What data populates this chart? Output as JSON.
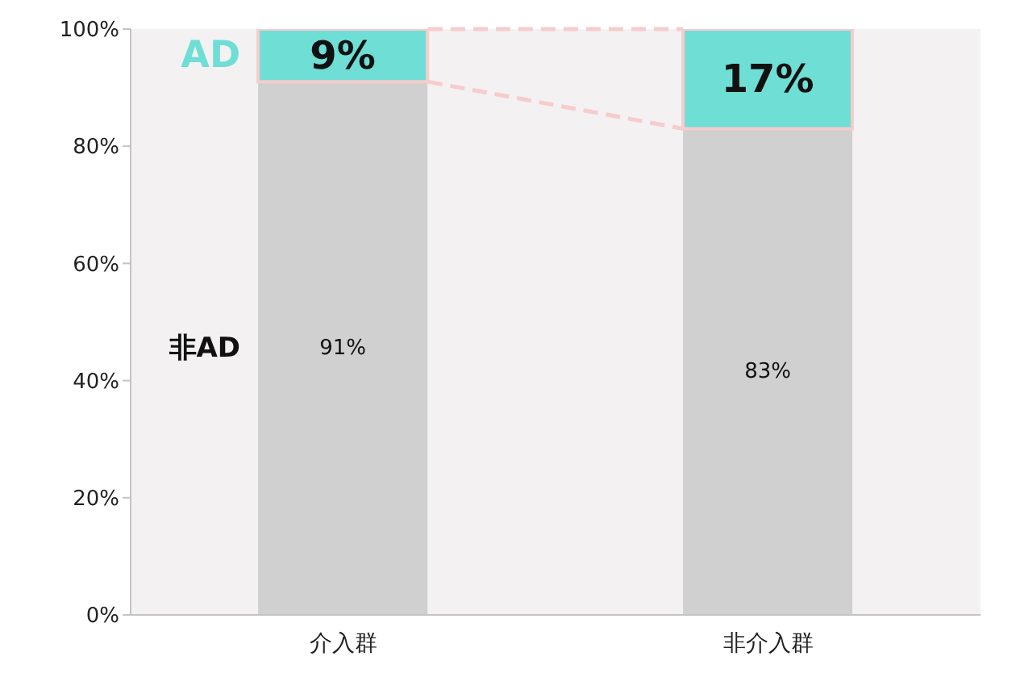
{
  "chart_data": {
    "type": "bar",
    "stacked": true,
    "categories": [
      "介入群",
      "非介入群"
    ],
    "series": [
      {
        "name": "非AD",
        "color": "#d0d0d0",
        "values": [
          91,
          83
        ],
        "value_labels": [
          "91%",
          "83%"
        ]
      },
      {
        "name": "AD",
        "color": "#6fded4",
        "values": [
          9,
          17
        ],
        "value_labels": [
          "9%",
          "17%"
        ]
      }
    ],
    "ylim": [
      0,
      100
    ],
    "yticks": [
      {
        "value": 0,
        "label": "0%"
      },
      {
        "value": 20,
        "label": "20%"
      },
      {
        "value": 40,
        "label": "40%"
      },
      {
        "value": 60,
        "label": "60%"
      },
      {
        "value": 80,
        "label": "80%"
      },
      {
        "value": 100,
        "label": "100%"
      }
    ],
    "legend": false
  }
}
